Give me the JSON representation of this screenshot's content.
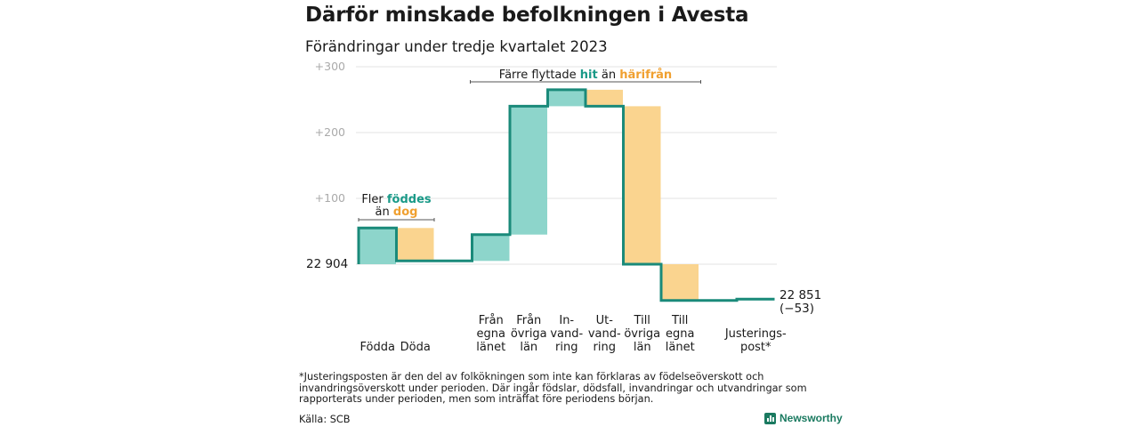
{
  "title": "Därför minskade befolkningen i Avesta",
  "subtitle": "Förändringar under tredje kvartalet 2023",
  "footnote": "*Justeringsposten är den del av folkökningen som inte kan förklaras av födelseöverskott och invandringsöverskott under perioden. Där ingår födslar, dödsfall, invandringar och utvandringar som rapporterats under perioden, men som inträffat före periodens början.",
  "source": "Källa: SCB",
  "brand": "Newsworthy",
  "colors": {
    "increase": "#8dd5cb",
    "decrease": "#fad48f",
    "line": "#1a8a7a",
    "grid": "#e3e3e3",
    "teal_text": "#1a9a88",
    "orange_text": "#f0a030"
  },
  "chart_data": {
    "type": "waterfall",
    "start_label": "22 904",
    "end_label": "22 851",
    "end_change": "(−53)",
    "y_ticks": [
      "+100",
      "+200",
      "+300"
    ],
    "y_tick_values": [
      100,
      200,
      300
    ],
    "ylim": [
      -70,
      310
    ],
    "steps": [
      {
        "label": [
          "Födda"
        ],
        "change": 55
      },
      {
        "label": [
          "Döda"
        ],
        "change": -50
      },
      {
        "label": [],
        "change": 0
      },
      {
        "label": [
          "Från",
          "egna",
          "länet"
        ],
        "change": 40
      },
      {
        "label": [
          "Från",
          "övriga",
          "län"
        ],
        "change": 195
      },
      {
        "label": [
          "In-",
          "vand-",
          "ring"
        ],
        "change": 25
      },
      {
        "label": [
          "Ut-",
          "vand-",
          "ring"
        ],
        "change": -25
      },
      {
        "label": [
          "Till",
          "övriga",
          "län"
        ],
        "change": -240
      },
      {
        "label": [
          "Till",
          "egna",
          "länet"
        ],
        "change": -55
      },
      {
        "label": [],
        "change": 0
      },
      {
        "label": [
          "Justerings-",
          "post*"
        ],
        "change": 2
      }
    ],
    "annotations": [
      {
        "parts": [
          [
            "Fler ",
            "plain"
          ],
          [
            "föddes",
            "teal"
          ]
        ],
        "parts2": [
          [
            "än ",
            "plain"
          ],
          [
            "dog",
            "orange"
          ]
        ],
        "from_step": 0,
        "to_step": 1
      },
      {
        "parts": [
          [
            "Färre flyttade ",
            "plain"
          ],
          [
            "hit",
            "teal"
          ],
          [
            " än ",
            "plain"
          ],
          [
            "härifrån",
            "orange"
          ]
        ],
        "from_step": 3,
        "to_step": 8
      }
    ]
  }
}
